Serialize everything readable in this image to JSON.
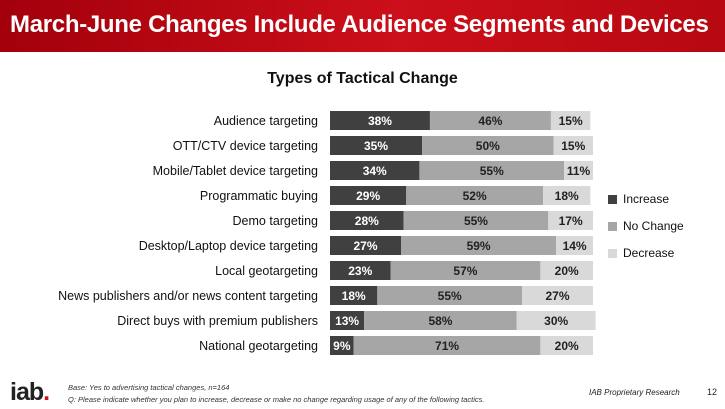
{
  "header": {
    "title": "March-June Changes Include Audience Segments and Devices"
  },
  "chart_data": {
    "type": "bar",
    "orientation": "horizontal",
    "stacked": true,
    "title": "Types of Tactical Change",
    "categories": [
      "Audience targeting",
      "OTT/CTV device targeting",
      "Mobile/Tablet device targeting",
      "Programmatic buying",
      "Demo targeting",
      "Desktop/Laptop device targeting",
      "Local geotargeting",
      "News publishers and/or news content targeting",
      "Direct buys with premium publishers",
      "National geotargeting"
    ],
    "series": [
      {
        "name": "Increase",
        "values": [
          38,
          35,
          34,
          29,
          28,
          27,
          23,
          18,
          13,
          9
        ],
        "color": "#404040"
      },
      {
        "name": "No Change",
        "values": [
          46,
          50,
          55,
          52,
          55,
          59,
          57,
          55,
          58,
          71
        ],
        "color": "#a6a6a6"
      },
      {
        "name": "Decrease",
        "values": [
          15,
          15,
          11,
          18,
          17,
          14,
          20,
          27,
          30,
          20
        ],
        "color": "#d9d9d9"
      }
    ],
    "value_suffix": "%",
    "legend_position": "right"
  },
  "footer": {
    "logo_text": "iab",
    "logo_dot": ".",
    "base_note": "Base: Yes to advertising tactical changes, n=164",
    "question_note": "Q: Please indicate whether you plan to increase, decrease or make no change regarding usage of any of the following tactics.",
    "research_label": "IAB Proprietary Research",
    "page_number": "12"
  }
}
